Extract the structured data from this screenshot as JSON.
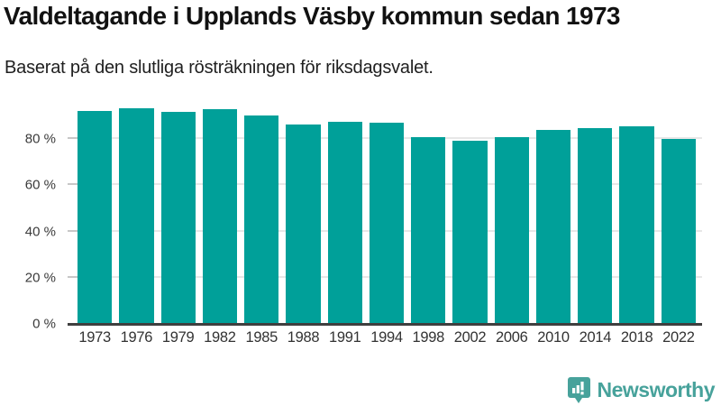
{
  "chart_data": {
    "type": "bar",
    "title": "Valdeltagande i Upplands Väsby kommun sedan 1973",
    "subtitle": "Baserat på den slutliga rösträkningen för riksdagsvalet.",
    "categories": [
      "1973",
      "1976",
      "1979",
      "1982",
      "1985",
      "1988",
      "1991",
      "1994",
      "1998",
      "2002",
      "2006",
      "2010",
      "2014",
      "2018",
      "2022"
    ],
    "values": [
      91.8,
      92.9,
      91.5,
      92.4,
      89.9,
      85.8,
      87.1,
      86.8,
      80.4,
      78.9,
      80.4,
      83.4,
      84.3,
      85.1,
      79.6
    ],
    "unit": "%",
    "xlabel": "",
    "ylabel": "",
    "ylim": [
      0,
      96
    ],
    "yticks": [
      0,
      20,
      40,
      60,
      80
    ],
    "ytick_labels": [
      "0 %",
      "20 %",
      "40 %",
      "60 %",
      "80 %"
    ],
    "grid": true,
    "legend_position": "none"
  },
  "colors": {
    "bar": "#00a099",
    "gridline": "#e7e7e7",
    "tick": "#c7c7c7",
    "axis_line": "#3f3f3f",
    "title_text": "#111111",
    "axis_text": "#3a3a3a",
    "logo_teal": "#47a29b",
    "background": "#ffffff"
  },
  "logo": {
    "text": "Newsworthy",
    "icon": "newsworthy-speech-bubble-bar-chart-icon"
  }
}
